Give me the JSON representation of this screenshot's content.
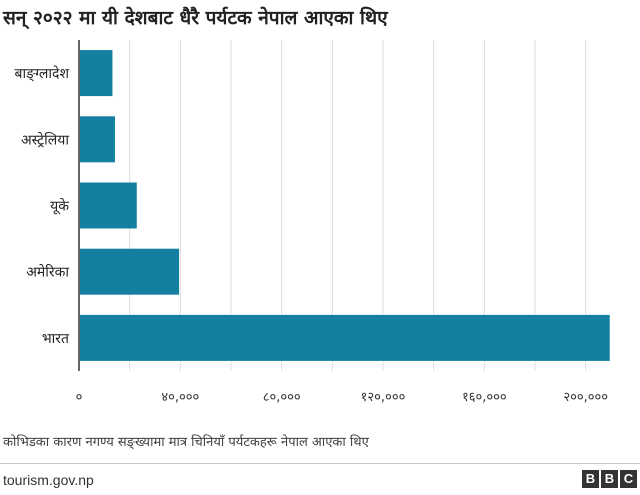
{
  "chart_data": {
    "type": "bar",
    "orientation": "horizontal",
    "title": "सन् २०२२ मा यी देशबाट धैरै पर्यटक नेपाल आएका थिए",
    "categories": [
      "बाङ्ग्लादेश",
      "अस्ट्रेलिया",
      "यूके",
      "अमेरिका",
      "भारत"
    ],
    "values": [
      13200,
      14200,
      22800,
      39500,
      209500
    ],
    "xlim": [
      0,
      210000
    ],
    "xticks": [
      0,
      40000,
      80000,
      120000,
      160000,
      200000
    ],
    "xtick_labels": [
      "०",
      "४०,०००",
      "८०,०००",
      "१२०,०००",
      "१६०,०००",
      "२००,०००"
    ],
    "grid": true,
    "bar_color": "#1380a1"
  },
  "footnote": "कोभिडका कारण नगण्य सङ्ख्यामा मात्र चिनियाँ पर्यटकहरू नेपाल आएका थिए",
  "source": "tourism.gov.np",
  "logo_letters": [
    "B",
    "B",
    "C"
  ]
}
